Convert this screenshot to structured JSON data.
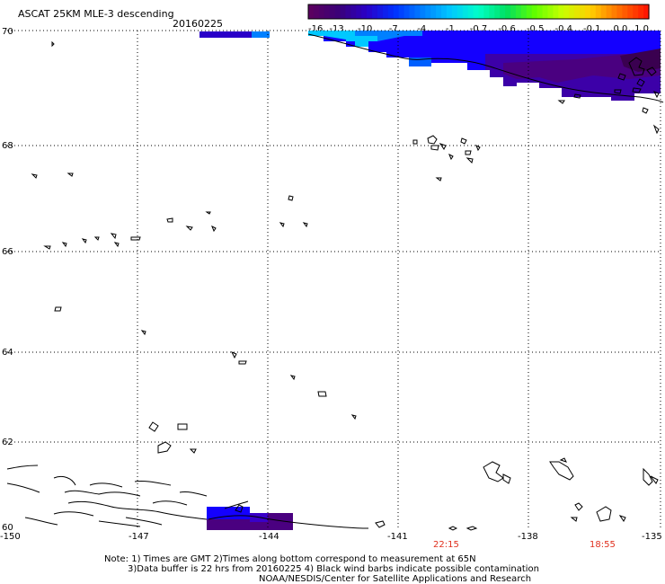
{
  "header": {
    "title": "ASCAT 25KM MLE-3 descending",
    "date": "20160225"
  },
  "colorbar": {
    "labels": [
      "-16",
      "-13",
      "-10",
      "-7",
      "-4",
      "-1",
      "-0.7",
      "-0.6",
      "-0.5",
      "-0.4",
      "-0.1",
      "0.0",
      "1.0"
    ],
    "colors": [
      "#5a0060",
      "#3a0078",
      "#2a00c8",
      "#0030ff",
      "#0080ff",
      "#00c8ff",
      "#00ffc8",
      "#00e060",
      "#60ff00",
      "#c8ff00",
      "#ffd000",
      "#ff7000",
      "#ff1800"
    ]
  },
  "latitude_labels": [
    "70",
    "68",
    "66",
    "64",
    "62",
    "60"
  ],
  "longitude_labels": [
    "-150",
    "-147",
    "-144",
    "-141",
    "-138",
    "-135"
  ],
  "times": [
    "22:15",
    "18:55"
  ],
  "notes": [
    "Note: 1) Times are GMT 2)Times along bottom correspond to measurement at 65N",
    "3)Data buffer is 22 hrs from 20160225 4) Black wind barbs indicate possible contamination",
    "NOAA/NESDIS/Center for Satellite Applications and Research"
  ],
  "map_data": {
    "lon_range": [
      -150,
      -135
    ],
    "lat_range": [
      60,
      70
    ],
    "projection": "equirectangular"
  }
}
